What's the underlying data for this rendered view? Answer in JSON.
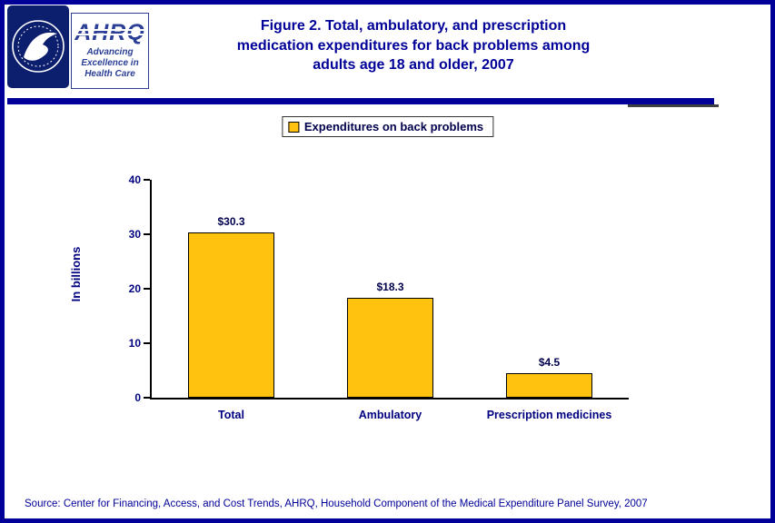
{
  "page": {
    "border_color": "#000099",
    "background": "#ffffff"
  },
  "header": {
    "hhs_logo_icon": "hhs-seal-icon",
    "ahrq_logo": {
      "acronym": "AHRQ",
      "tagline_lines": [
        "Advancing",
        "Excellence in",
        "Health Care"
      ]
    },
    "title_lines": [
      "Figure 2. Total, ambulatory, and prescription",
      "medication expenditures for back problems among",
      "adults age 18 and older, 2007"
    ],
    "title_color": "#000099"
  },
  "legend": {
    "label": "Expenditures on back problems"
  },
  "chart_data": {
    "type": "bar",
    "title": "Figure 2. Total, ambulatory, and prescription medication expenditures for back problems among adults age 18 and older, 2007",
    "categories": [
      "Total",
      "Ambulatory",
      "Prescription medicines"
    ],
    "values": [
      30.3,
      18.3,
      4.5
    ],
    "value_labels": [
      "$30.3",
      "$18.3",
      "$4.5"
    ],
    "series_name": "Expenditures on back problems",
    "xlabel": "",
    "ylabel": "In billions",
    "ylim": [
      0,
      40
    ],
    "yticks": [
      0,
      10,
      20,
      30,
      40
    ],
    "grid": false,
    "legend_position": "top-center",
    "bar_color": "#FFC20E",
    "bar_border_color": "#000000",
    "axis_text_color": "#000080"
  },
  "footer": {
    "source": "Source: Center for Financing, Access, and Cost Trends, AHRQ, Household Component of the Medical Expenditure Panel Survey, 2007"
  }
}
